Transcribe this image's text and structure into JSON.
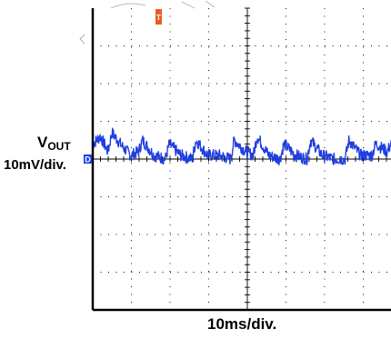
{
  "chart_data": {
    "type": "line",
    "title": "",
    "xlabel": "10ms/div.",
    "ylabel_main": "V",
    "ylabel_sub": "OUT",
    "ylabel_scale": "10mV/div.",
    "channel_marker": "D",
    "trigger_marker": "T",
    "x_divisions": 10,
    "y_divisions": 8,
    "x_visible_divisions": 7.8,
    "xlim": [
      0,
      78
    ],
    "ylim": [
      -40,
      40
    ],
    "x_unit": "ms",
    "y_unit": "mV",
    "grid": true,
    "series": [
      {
        "name": "",
        "color": "#1f3fe0",
        "x": [
          0,
          2,
          4,
          5,
          8,
          10,
          12,
          13,
          16,
          19,
          20,
          23,
          26,
          27,
          30,
          33,
          36,
          37,
          40,
          42,
          43,
          46,
          49,
          50,
          53,
          56,
          57,
          60,
          63,
          66,
          67,
          70,
          73,
          74,
          77,
          78
        ],
        "y": [
          4,
          6,
          2,
          7,
          3,
          1,
          2,
          5,
          1,
          0,
          4,
          1,
          0,
          5,
          1,
          1,
          0,
          5,
          2,
          1,
          6,
          1,
          0,
          4,
          1,
          0,
          5,
          1,
          0,
          0,
          5,
          1,
          1,
          4,
          2,
          4
        ]
      }
    ]
  },
  "colors": {
    "trace": "#1f3fe0",
    "grid": "#000000",
    "channel_marker": "#1f3fe0",
    "trigger_marker": "#ee5a24"
  }
}
